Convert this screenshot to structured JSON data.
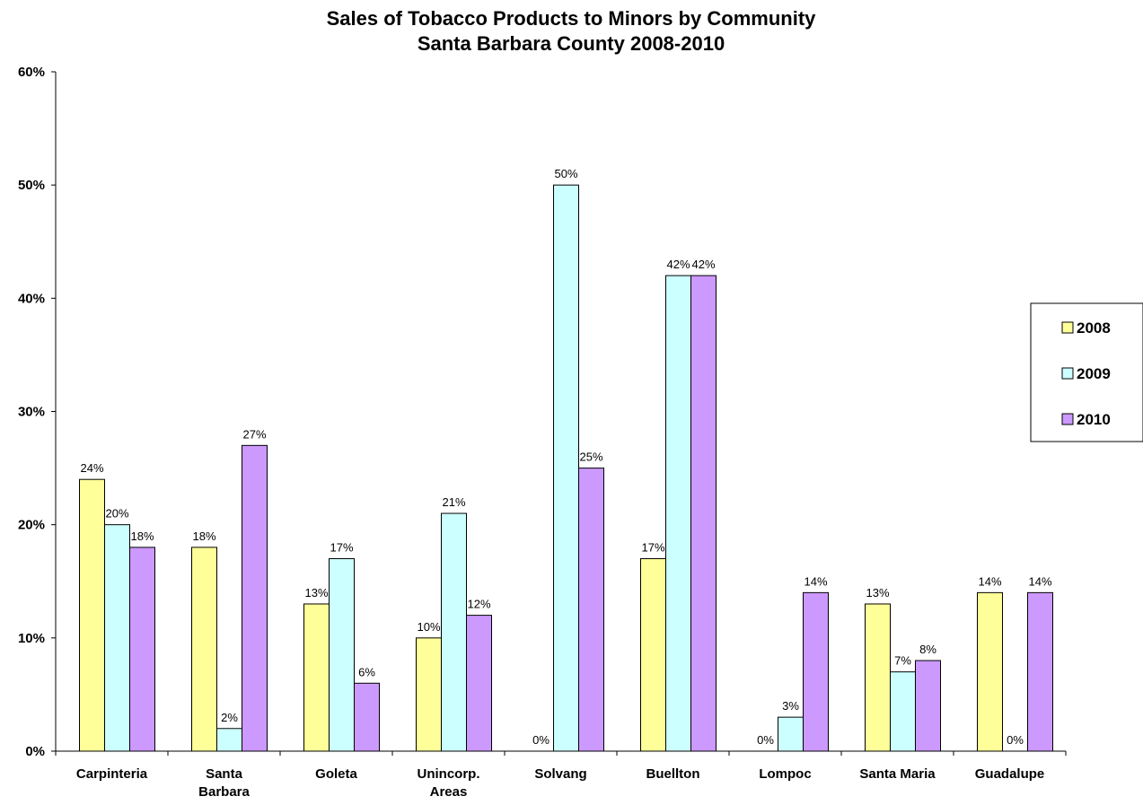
{
  "chart_data": {
    "type": "bar",
    "title": "Sales of Tobacco Products to Minors by Community",
    "subtitle": "Santa Barbara County 2008-2010",
    "xlabel": "",
    "ylabel": "",
    "ylim": [
      0,
      60
    ],
    "yticks": [
      "0%",
      "10%",
      "20%",
      "30%",
      "40%",
      "50%",
      "60%"
    ],
    "grid": false,
    "legend_position": "right",
    "categories": [
      [
        "Carpinteria"
      ],
      [
        "Santa",
        "Barbara"
      ],
      [
        "Goleta"
      ],
      [
        "Unincorp.",
        "Areas"
      ],
      [
        "Solvang"
      ],
      [
        "Buellton"
      ],
      [
        "Lompoc"
      ],
      [
        "Santa Maria"
      ],
      [
        "Guadalupe"
      ]
    ],
    "series": [
      {
        "name": "2008",
        "color": "#ffff99",
        "values": [
          24,
          18,
          13,
          10,
          0,
          17,
          0,
          13,
          14
        ]
      },
      {
        "name": "2009",
        "color": "#ccffff",
        "values": [
          20,
          2,
          17,
          21,
          50,
          42,
          3,
          7,
          0
        ]
      },
      {
        "name": "2010",
        "color": "#cc99ff",
        "values": [
          18,
          27,
          6,
          12,
          25,
          42,
          14,
          8,
          14
        ]
      }
    ],
    "value_suffix": "%"
  }
}
